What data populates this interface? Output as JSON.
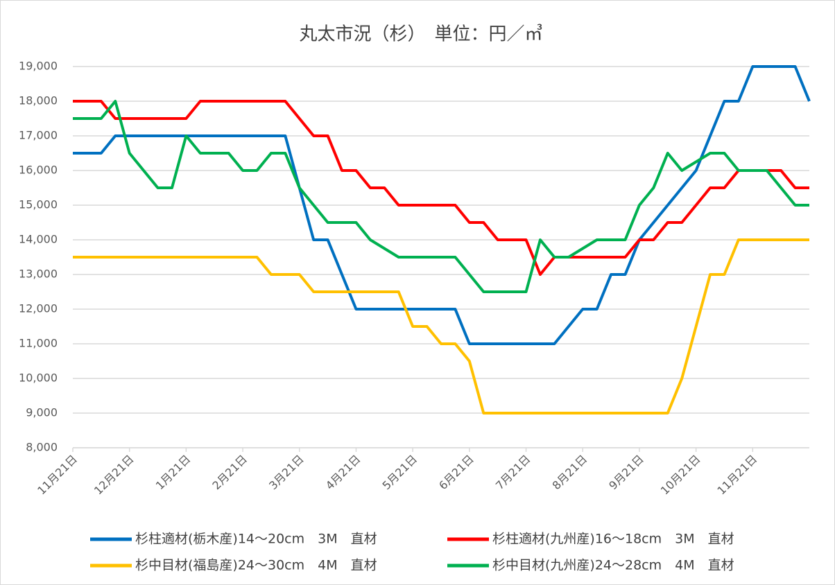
{
  "chart_data": {
    "type": "line",
    "title": "丸太市況（杉）　単位：円／㎥",
    "categories": [
      "11月21日",
      null,
      null,
      null,
      "12月21日",
      null,
      null,
      null,
      "1月21日",
      null,
      null,
      null,
      "2月21日",
      null,
      null,
      null,
      "3月21日",
      null,
      null,
      null,
      "4月21日",
      null,
      null,
      null,
      "5月21日",
      null,
      null,
      null,
      "6月21日",
      null,
      null,
      null,
      "7月21日",
      null,
      null,
      null,
      "8月21日",
      null,
      null,
      null,
      "9月21日",
      null,
      null,
      null,
      "10月21日",
      null,
      null,
      null,
      "11月21日",
      null,
      null,
      null,
      null
    ],
    "series": [
      {
        "name": "杉柱適材(栃木産)14～20cm　3M　直材",
        "color": "#0070c0",
        "values": [
          16500,
          16500,
          16500,
          17000,
          17000,
          17000,
          17000,
          17000,
          17000,
          17000,
          17000,
          17000,
          17000,
          17000,
          17000,
          17000,
          15500,
          14000,
          14000,
          13000,
          12000,
          12000,
          12000,
          12000,
          12000,
          12000,
          12000,
          12000,
          11000,
          11000,
          11000,
          11000,
          11000,
          11000,
          11000,
          11500,
          12000,
          12000,
          13000,
          13000,
          14000,
          14500,
          15000,
          15500,
          16000,
          17000,
          18000,
          18000,
          19000,
          19000,
          19000,
          19000,
          18000
        ]
      },
      {
        "name": "杉柱適材(九州産)16～18cm　3M　直材",
        "color": "#ff0000",
        "values": [
          18000,
          18000,
          18000,
          17500,
          17500,
          17500,
          17500,
          17500,
          17500,
          18000,
          18000,
          18000,
          18000,
          18000,
          18000,
          18000,
          17500,
          17000,
          17000,
          16000,
          16000,
          15500,
          15500,
          15000,
          15000,
          15000,
          15000,
          15000,
          14500,
          14500,
          14000,
          14000,
          14000,
          13000,
          13500,
          13500,
          13500,
          13500,
          13500,
          13500,
          14000,
          14000,
          14500,
          14500,
          15000,
          15500,
          15500,
          16000,
          16000,
          16000,
          16000,
          15500,
          15500
        ]
      },
      {
        "name": "杉中目材(福島産)24～30cm　4M　直材",
        "color": "#ffc000",
        "values": [
          13500,
          13500,
          13500,
          13500,
          13500,
          13500,
          13500,
          13500,
          13500,
          13500,
          13500,
          13500,
          13500,
          13500,
          13000,
          13000,
          13000,
          12500,
          12500,
          12500,
          12500,
          12500,
          12500,
          12500,
          11500,
          11500,
          11000,
          11000,
          10500,
          9000,
          9000,
          9000,
          9000,
          9000,
          9000,
          9000,
          9000,
          9000,
          9000,
          9000,
          9000,
          9000,
          9000,
          10000,
          11500,
          13000,
          13000,
          14000,
          14000,
          14000,
          14000,
          14000,
          14000
        ]
      },
      {
        "name": "杉中目材(九州産)24～28cm　4M　直材",
        "color": "#00b050",
        "values": [
          17500,
          17500,
          17500,
          18000,
          16500,
          16000,
          15500,
          15500,
          17000,
          16500,
          16500,
          16500,
          16000,
          16000,
          16500,
          16500,
          15500,
          15000,
          14500,
          14500,
          14500,
          14000,
          13750,
          13500,
          13500,
          13500,
          13500,
          13500,
          13000,
          12500,
          12500,
          12500,
          12500,
          14000,
          13500,
          13500,
          13750,
          14000,
          14000,
          14000,
          15000,
          15500,
          16500,
          16000,
          16250,
          16500,
          16500,
          16000,
          16000,
          16000,
          15500,
          15000,
          15000
        ]
      }
    ],
    "ylim": [
      8000,
      19000
    ],
    "yticks": [
      {
        "value": 8000,
        "label": "8,000"
      },
      {
        "value": 9000,
        "label": "9,000"
      },
      {
        "value": 10000,
        "label": "10,000"
      },
      {
        "value": 11000,
        "label": "11,000"
      },
      {
        "value": 12000,
        "label": "12,000"
      },
      {
        "value": 13000,
        "label": "13,000"
      },
      {
        "value": 14000,
        "label": "14,000"
      },
      {
        "value": 15000,
        "label": "15,000"
      },
      {
        "value": 16000,
        "label": "16,000"
      },
      {
        "value": 17000,
        "label": "17,000"
      },
      {
        "value": 18000,
        "label": "18,000"
      },
      {
        "value": 19000,
        "label": "19,000"
      }
    ],
    "grid": true
  }
}
